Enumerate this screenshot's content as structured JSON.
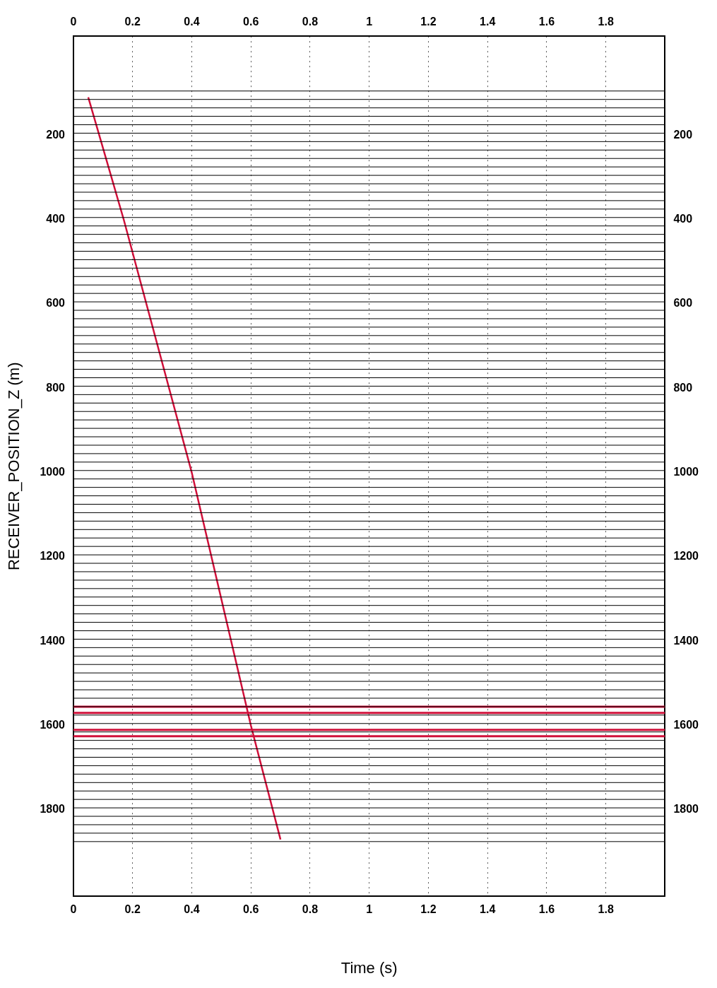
{
  "chart_data": {
    "type": "line",
    "x_label": "Time (s)",
    "y_label": "RECEIVER_POSITION_Z (m)",
    "xlim": [
      0,
      2
    ],
    "xticks": [
      0,
      0.2,
      0.4,
      0.6,
      0.8,
      1,
      1.2,
      1.4,
      1.6,
      1.8
    ],
    "ylim": [
      -35,
      2005
    ],
    "yticks": [
      200,
      400,
      600,
      800,
      1000,
      1200,
      1400,
      1600,
      1800
    ],
    "grid": true,
    "traces": {
      "color": "#000000",
      "depths": [
        95,
        115,
        135,
        155,
        175,
        195,
        215,
        235,
        255,
        275,
        295,
        315,
        335,
        355,
        375,
        395,
        415,
        435,
        455,
        475,
        495,
        515,
        535,
        555,
        575,
        595,
        615,
        635,
        655,
        675,
        695,
        715,
        735,
        755,
        775,
        795,
        815,
        835,
        855,
        875,
        895,
        915,
        935,
        955,
        975,
        995,
        1015,
        1035,
        1055,
        1075,
        1095,
        1115,
        1135,
        1155,
        1175,
        1195,
        1215,
        1235,
        1255,
        1275,
        1295,
        1315,
        1335,
        1355,
        1375,
        1395,
        1415,
        1435,
        1455,
        1475,
        1495,
        1515,
        1535,
        1555,
        1575,
        1595,
        1615,
        1635,
        1655,
        1675,
        1695,
        1715,
        1735,
        1755,
        1775,
        1795,
        1815,
        1835,
        1855,
        1875
      ]
    },
    "series": [
      {
        "color": "#d0103a",
        "line_style": "solid",
        "x": [
          0.05,
          0.17,
          0.4,
          0.6,
          0.7
        ],
        "values": [
          110,
          400,
          1000,
          1600,
          1870
        ]
      }
    ],
    "horizontal_lines": {
      "color": "#d0103a",
      "values": [
        1555,
        1570,
        1610,
        1625
      ]
    }
  }
}
